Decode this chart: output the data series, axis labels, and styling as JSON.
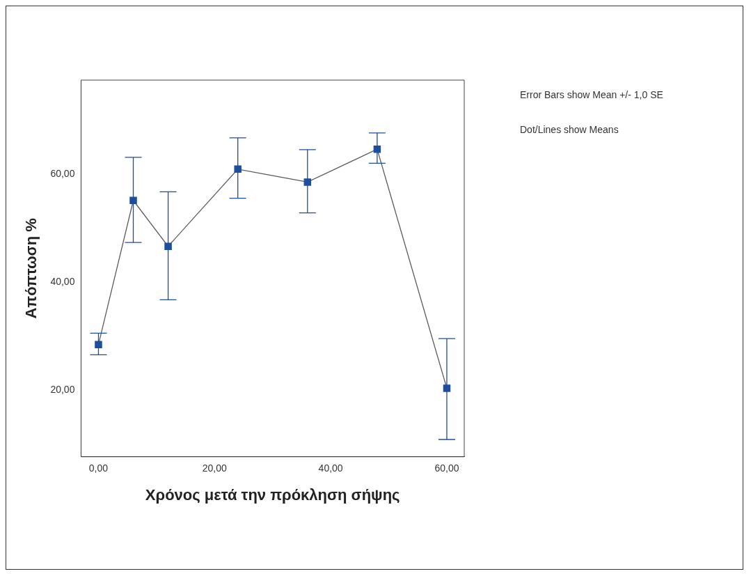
{
  "chart_data": {
    "type": "line",
    "xlabel": "Χρόνος μετά την πρόκληση σήψης",
    "ylabel": "Απόπτωση %",
    "x": [
      0,
      6,
      12,
      24,
      36,
      48,
      60
    ],
    "series": [
      {
        "color": "#1f4e9c",
        "values": [
          28.4,
          55.1,
          46.6,
          60.9,
          58.5,
          64.6,
          20.3
        ],
        "errors": [
          [
            26.5,
            30.5
          ],
          [
            47.3,
            63.1
          ],
          [
            36.7,
            56.7
          ],
          [
            55.5,
            66.7
          ],
          [
            52.8,
            64.5
          ],
          [
            62.0,
            67.6
          ],
          [
            10.8,
            29.5
          ]
        ]
      }
    ],
    "xlim": [
      -3,
      63
    ],
    "xticks": [
      {
        "value": 0,
        "label": "0,00"
      },
      {
        "value": 20,
        "label": "20,00"
      },
      {
        "value": 40,
        "label": "40,00"
      },
      {
        "value": 60,
        "label": "60,00"
      }
    ],
    "ylim": [
      7.6,
      77.4
    ],
    "yticks": [
      {
        "value": 20,
        "label": "20,00"
      },
      {
        "value": 40,
        "label": "40,00"
      },
      {
        "value": 60,
        "label": "60,00"
      }
    ],
    "grid": false,
    "legend": false,
    "marker": "square",
    "line_style": "solid",
    "annotations": [
      "Error Bars show Mean +/- 1,0 SE",
      "Dot/Lines show Means"
    ]
  }
}
